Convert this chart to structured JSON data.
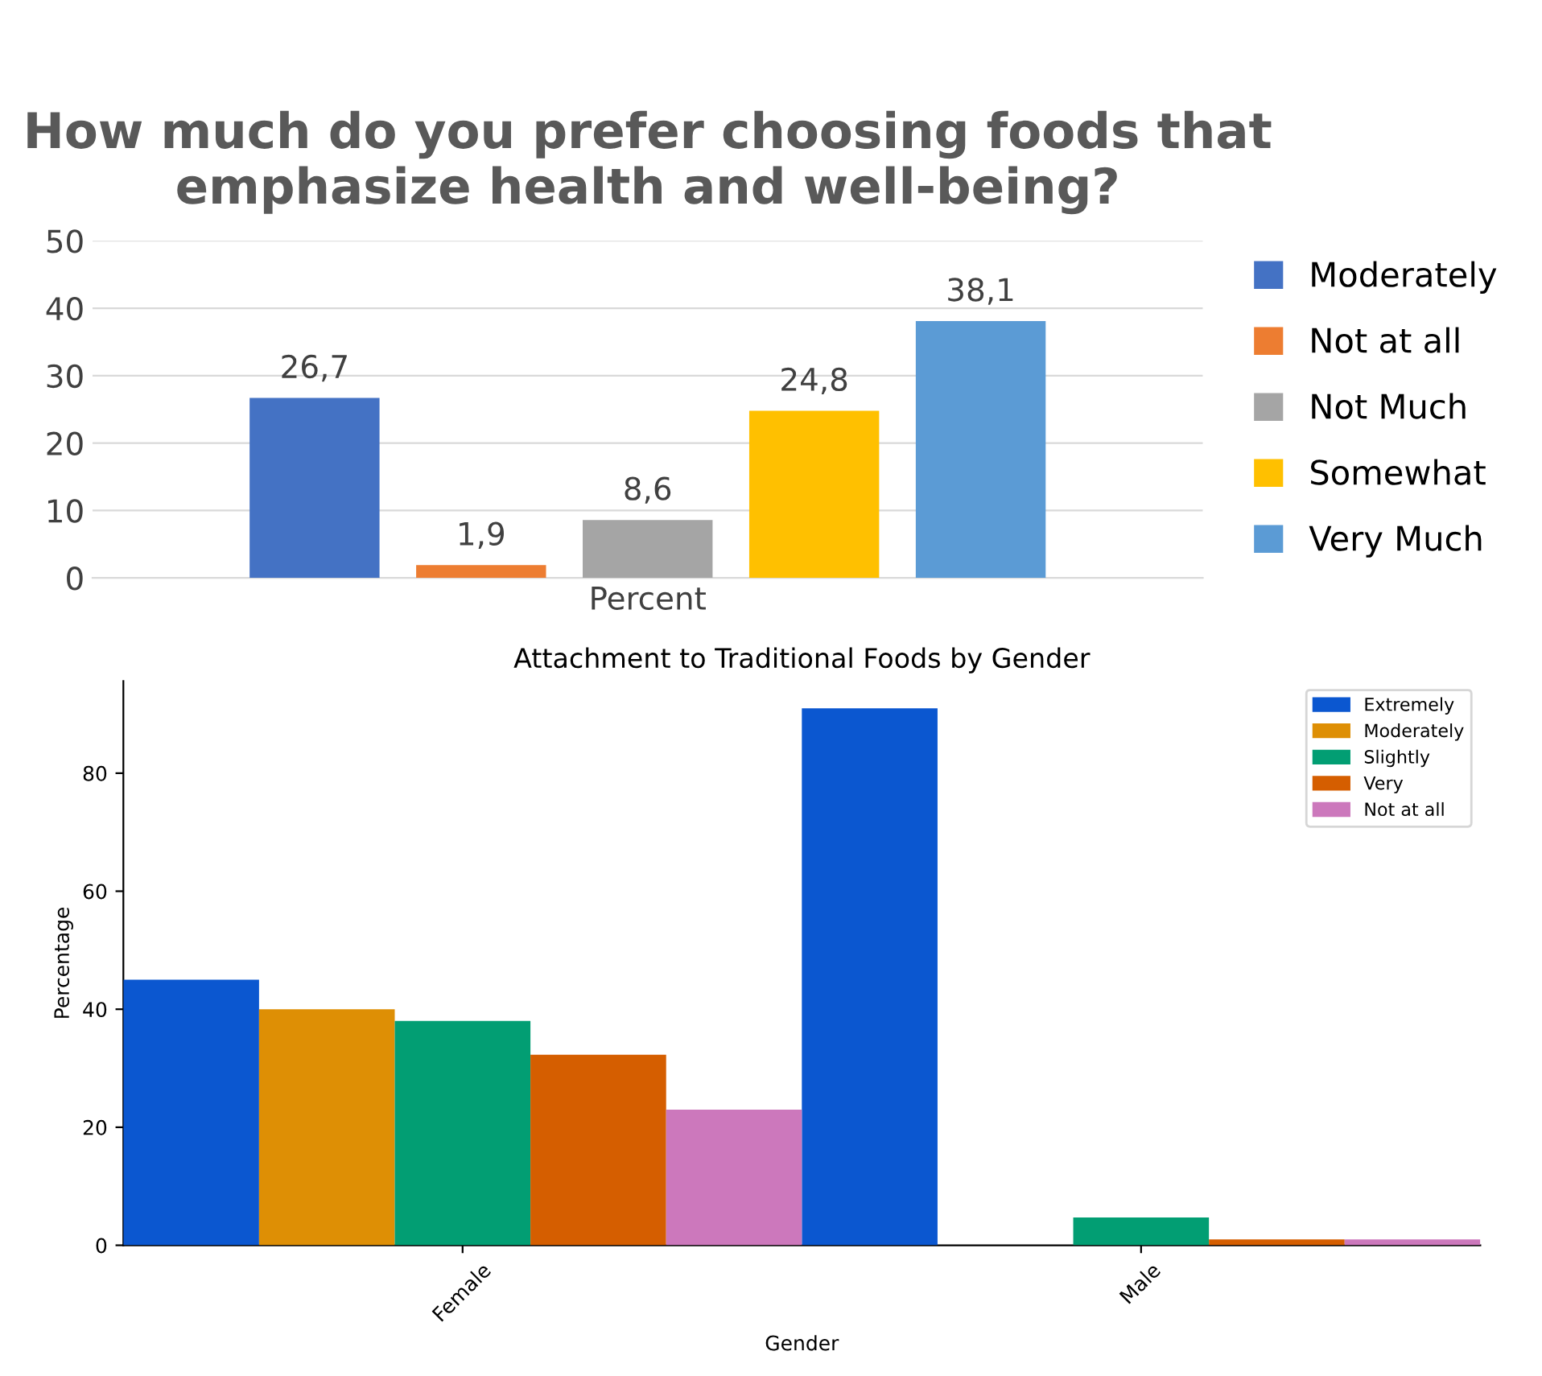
{
  "chart_data": [
    {
      "type": "bar",
      "title": "How much do you prefer choosing foods that emphasize health and well-being?",
      "categories": [
        "Percent"
      ],
      "ylim": [
        0,
        50
      ],
      "yticks": [
        0,
        10,
        20,
        30,
        40,
        50
      ],
      "grid": "y",
      "legend": "right",
      "data_labels": true,
      "series": [
        {
          "name": "Moderately",
          "color": "#4472c4",
          "values": [
            26.7
          ],
          "value_labels": [
            "26,7"
          ]
        },
        {
          "name": "Not at all",
          "color": "#ed7d31",
          "values": [
            1.9
          ],
          "value_labels": [
            "1,9"
          ]
        },
        {
          "name": "Not Much",
          "color": "#a5a5a5",
          "values": [
            8.6
          ],
          "value_labels": [
            "8,6"
          ]
        },
        {
          "name": "Somewhat",
          "color": "#ffc000",
          "values": [
            24.8
          ],
          "value_labels": [
            "24,8"
          ]
        },
        {
          "name": "Very Much",
          "color": "#5b9bd5",
          "values": [
            38.1
          ],
          "value_labels": [
            "38,1"
          ]
        }
      ]
    },
    {
      "type": "bar",
      "title": "Attachment to Traditional Foods by Gender",
      "xlabel": "Gender",
      "ylabel": "Percentage",
      "categories": [
        "Female",
        "Male"
      ],
      "ylim": [
        0,
        95.6
      ],
      "yticks": [
        0,
        20,
        40,
        60,
        80
      ],
      "legend": "top right",
      "series": [
        {
          "name": "Extremely",
          "color": "#0b57d0",
          "values": [
            45,
            91
          ]
        },
        {
          "name": "Moderately",
          "color": "#de8f05",
          "values": [
            40,
            null
          ]
        },
        {
          "name": "Slightly",
          "color": "#029e73",
          "values": [
            38,
            4.7
          ]
        },
        {
          "name": "Very",
          "color": "#d55e00",
          "values": [
            32.3,
            1
          ]
        },
        {
          "name": "Not at all",
          "color": "#cc78bc",
          "values": [
            23,
            1
          ]
        }
      ]
    }
  ]
}
